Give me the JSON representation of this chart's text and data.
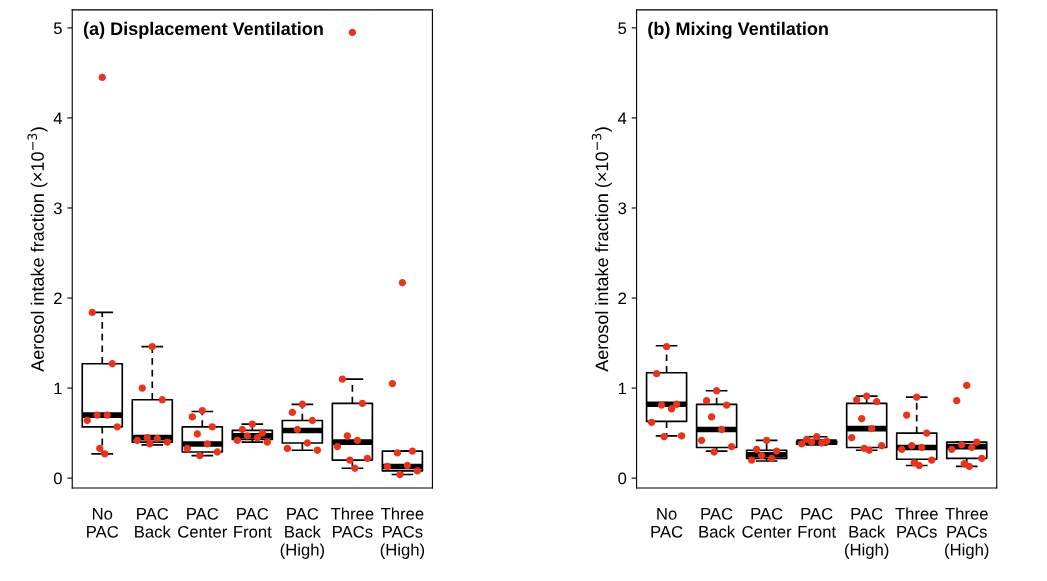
{
  "chart_data": [
    {
      "type": "box",
      "title": "(a) Displacement Ventilation",
      "ylabel": "Aerosol intake fraction (×10$^{−3}$)",
      "categories": [
        "No\nPAC",
        "PAC\nBack",
        "PAC\nCenter",
        "PAC\nFront",
        "PAC\nBack\n(High)",
        "Three\nPACs",
        "Three\nPACs\n(High)"
      ],
      "ylim": [
        -0.11,
        5.2
      ],
      "yticks": [
        0,
        1,
        2,
        3,
        4,
        5
      ],
      "boxes": [
        {
          "low": 0.27,
          "q1": 0.57,
          "median": 0.7,
          "q3": 1.27,
          "high": 1.84
        },
        {
          "low": 0.37,
          "q1": 0.4,
          "median": 0.45,
          "q3": 0.87,
          "high": 1.46
        },
        {
          "low": 0.25,
          "q1": 0.29,
          "median": 0.38,
          "q3": 0.57,
          "high": 0.74
        },
        {
          "low": 0.4,
          "q1": 0.43,
          "median": 0.47,
          "q3": 0.53,
          "high": 0.6
        },
        {
          "low": 0.31,
          "q1": 0.39,
          "median": 0.53,
          "q3": 0.64,
          "high": 0.82
        },
        {
          "low": 0.11,
          "q1": 0.2,
          "median": 0.4,
          "q3": 0.83,
          "high": 1.1
        },
        {
          "low": 0.04,
          "q1": 0.08,
          "median": 0.13,
          "q3": 0.3,
          "high": 0.3
        }
      ],
      "series": [
        {
          "type": "scatter",
          "color": "#e8341c",
          "marker": "circle",
          "x": [
            "No\nPAC",
            "No\nPAC",
            "No\nPAC",
            "No\nPAC",
            "No\nPAC",
            "No\nPAC",
            "No\nPAC",
            "No\nPAC",
            "No\nPAC",
            "PAC\nBack",
            "PAC\nBack",
            "PAC\nBack",
            "PAC\nBack",
            "PAC\nBack",
            "PAC\nBack",
            "PAC\nBack",
            "PAC\nBack",
            "PAC\nCenter",
            "PAC\nCenter",
            "PAC\nCenter",
            "PAC\nCenter",
            "PAC\nCenter",
            "PAC\nCenter",
            "PAC\nCenter",
            "PAC\nCenter",
            "PAC\nFront",
            "PAC\nFront",
            "PAC\nFront",
            "PAC\nFront",
            "PAC\nFront",
            "PAC\nFront",
            "PAC\nFront",
            "PAC\nBack\n(High)",
            "PAC\nBack\n(High)",
            "PAC\nBack\n(High)",
            "PAC\nBack\n(High)",
            "PAC\nBack\n(High)",
            "PAC\nBack\n(High)",
            "PAC\nBack\n(High)",
            "Three\nPACs",
            "Three\nPACs",
            "Three\nPACs",
            "Three\nPACs",
            "Three\nPACs",
            "Three\nPACs",
            "Three\nPACs",
            "Three\nPACs",
            "Three\nPACs",
            "Three\nPACs\n(High)",
            "Three\nPACs\n(High)",
            "Three\nPACs\n(High)",
            "Three\nPACs\n(High)",
            "Three\nPACs\n(High)",
            "Three\nPACs\n(High)",
            "Three\nPACs\n(High)",
            "Three\nPACs\n(High)"
          ],
          "values": [
            4.45,
            1.84,
            1.27,
            0.7,
            0.7,
            0.64,
            0.57,
            0.33,
            0.27,
            1.46,
            1.0,
            0.87,
            0.45,
            0.44,
            0.42,
            0.4,
            0.38,
            0.75,
            0.68,
            0.57,
            0.49,
            0.38,
            0.33,
            0.29,
            0.25,
            0.6,
            0.54,
            0.5,
            0.47,
            0.45,
            0.42,
            0.4,
            0.82,
            0.73,
            0.64,
            0.54,
            0.39,
            0.33,
            0.31,
            4.95,
            1.1,
            0.83,
            0.47,
            0.42,
            0.35,
            0.22,
            0.2,
            0.11,
            2.17,
            1.05,
            0.3,
            0.28,
            0.14,
            0.13,
            0.08,
            0.04
          ]
        }
      ]
    },
    {
      "type": "box",
      "title": "(b) Mixing Ventilation",
      "ylabel": "Aerosol intake fraction (×10$^{−3}$)",
      "categories": [
        "No\nPAC",
        "PAC\nBack",
        "PAC\nCenter",
        "PAC\nFront",
        "PAC\nBack\n(High)",
        "Three\nPACs",
        "Three\nPACs\n(High)"
      ],
      "ylim": [
        -0.11,
        5.2
      ],
      "yticks": [
        0,
        1,
        2,
        3,
        4,
        5
      ],
      "boxes": [
        {
          "low": 0.47,
          "q1": 0.63,
          "median": 0.82,
          "q3": 1.17,
          "high": 1.47
        },
        {
          "low": 0.3,
          "q1": 0.34,
          "median": 0.54,
          "q3": 0.82,
          "high": 0.97
        },
        {
          "low": 0.19,
          "q1": 0.22,
          "median": 0.26,
          "q3": 0.31,
          "high": 0.42
        },
        {
          "low": 0.37,
          "q1": 0.38,
          "median": 0.4,
          "q3": 0.41,
          "high": 0.46
        },
        {
          "low": 0.31,
          "q1": 0.34,
          "median": 0.55,
          "q3": 0.83,
          "high": 0.91
        },
        {
          "low": 0.14,
          "q1": 0.21,
          "median": 0.34,
          "q3": 0.5,
          "high": 0.9
        },
        {
          "low": 0.13,
          "q1": 0.22,
          "median": 0.35,
          "q3": 0.4,
          "high": 0.4
        }
      ],
      "series": [
        {
          "type": "scatter",
          "color": "#e8341c",
          "marker": "circle",
          "x": [
            "No\nPAC",
            "No\nPAC",
            "No\nPAC",
            "No\nPAC",
            "No\nPAC",
            "No\nPAC",
            "No\nPAC",
            "No\nPAC",
            "PAC\nBack",
            "PAC\nBack",
            "PAC\nBack",
            "PAC\nBack",
            "PAC\nBack",
            "PAC\nBack",
            "PAC\nBack",
            "PAC\nBack",
            "PAC\nCenter",
            "PAC\nCenter",
            "PAC\nCenter",
            "PAC\nCenter",
            "PAC\nCenter",
            "PAC\nCenter",
            "PAC\nFront",
            "PAC\nFront",
            "PAC\nFront",
            "PAC\nFront",
            "PAC\nFront",
            "PAC\nFront",
            "PAC\nBack\n(High)",
            "PAC\nBack\n(High)",
            "PAC\nBack\n(High)",
            "PAC\nBack\n(High)",
            "PAC\nBack\n(High)",
            "PAC\nBack\n(High)",
            "PAC\nBack\n(High)",
            "PAC\nBack\n(High)",
            "PAC\nBack\n(High)",
            "Three\nPACs",
            "Three\nPACs",
            "Three\nPACs",
            "Three\nPACs",
            "Three\nPACs",
            "Three\nPACs",
            "Three\nPACs",
            "Three\nPACs",
            "Three\nPACs",
            "Three\nPACs\n(High)",
            "Three\nPACs\n(High)",
            "Three\nPACs\n(High)",
            "Three\nPACs\n(High)",
            "Three\nPACs\n(High)",
            "Three\nPACs\n(High)",
            "Three\nPACs\n(High)",
            "Three\nPACs\n(High)",
            "Three\nPACs\n(High)"
          ],
          "values": [
            1.46,
            1.16,
            0.82,
            0.81,
            0.77,
            0.62,
            0.47,
            0.46,
            0.97,
            0.86,
            0.81,
            0.68,
            0.54,
            0.42,
            0.35,
            0.29,
            0.42,
            0.32,
            0.3,
            0.25,
            0.22,
            0.2,
            0.46,
            0.43,
            0.41,
            0.4,
            0.39,
            0.38,
            0.91,
            0.87,
            0.85,
            0.66,
            0.55,
            0.45,
            0.36,
            0.33,
            0.31,
            0.9,
            0.7,
            0.5,
            0.36,
            0.34,
            0.32,
            0.2,
            0.17,
            0.14,
            1.03,
            0.86,
            0.4,
            0.37,
            0.34,
            0.32,
            0.22,
            0.16,
            0.13
          ]
        }
      ]
    }
  ]
}
